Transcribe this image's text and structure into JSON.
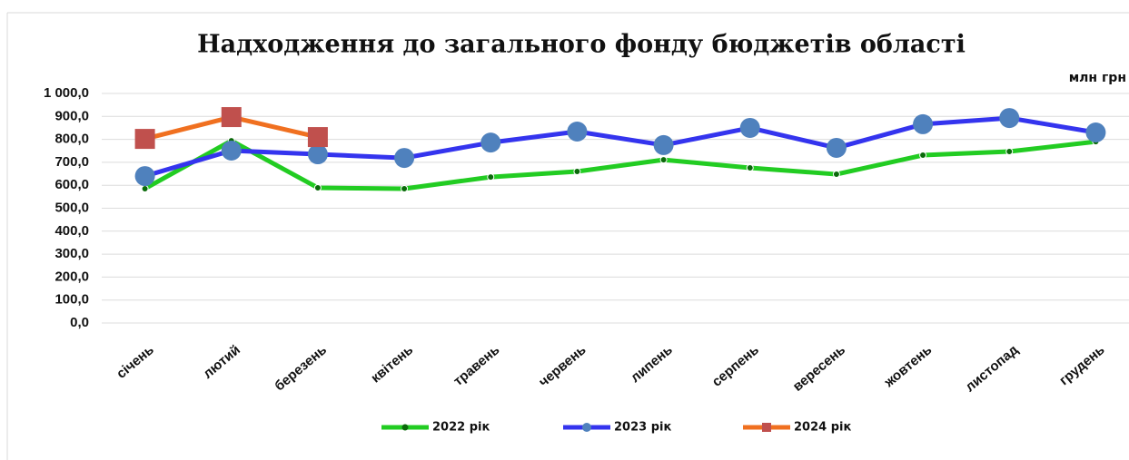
{
  "chart_data": {
    "type": "line",
    "title": "Надходження до загального фонду бюджетів області",
    "unit": "млн грн",
    "categories": [
      "січень",
      "лютий",
      "березень",
      "квітень",
      "травень",
      "червень",
      "липень",
      "серпень",
      "вересень",
      "жовтень",
      "листопад",
      "грудень"
    ],
    "series": [
      {
        "name": "2022 рік",
        "color": "#22cc22",
        "marker_color": "#0a6a0a",
        "marker": "dot",
        "values": [
          585,
          794,
          589,
          585,
          636,
          660,
          711,
          676,
          648,
          731,
          747,
          790
        ]
      },
      {
        "name": "2023 рік",
        "color": "#3434ee",
        "marker_color": "#4f81bd",
        "marker": "circle",
        "values": [
          640,
          751,
          735,
          719,
          786,
          834,
          775,
          850,
          763,
          866,
          893,
          830
        ]
      },
      {
        "name": "2024 рік",
        "color": "#f07020",
        "marker_color": "#c0504d",
        "marker": "square",
        "values": [
          802,
          897,
          810,
          null,
          null,
          null,
          null,
          null,
          null,
          null,
          null,
          null
        ]
      }
    ],
    "ylim": [
      0,
      1000
    ],
    "yticks": [
      {
        "value": 0,
        "label": "0,0"
      },
      {
        "value": 100,
        "label": "100,0"
      },
      {
        "value": 200,
        "label": "200,0"
      },
      {
        "value": 300,
        "label": "300,0"
      },
      {
        "value": 400,
        "label": "400,0"
      },
      {
        "value": 500,
        "label": "500,0"
      },
      {
        "value": 600,
        "label": "600,0"
      },
      {
        "value": 700,
        "label": "700,0"
      },
      {
        "value": 800,
        "label": "800,0"
      },
      {
        "value": 900,
        "label": "900,0"
      },
      {
        "value": 1000,
        "label": "1 000,0"
      }
    ],
    "grid": true,
    "legend": "bottom"
  }
}
